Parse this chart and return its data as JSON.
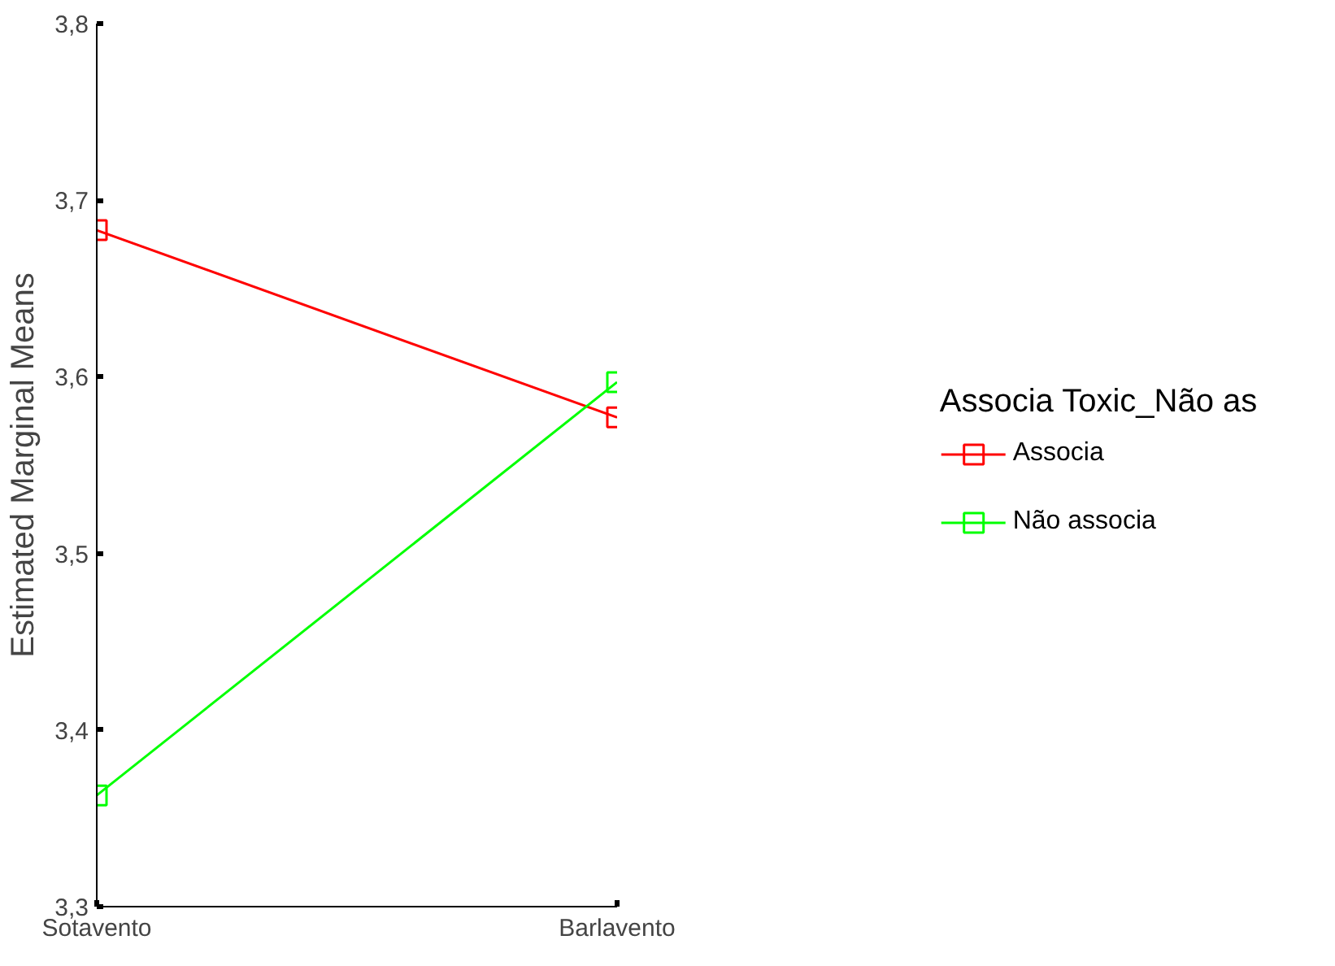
{
  "chart_data": {
    "type": "line",
    "ylabel": "Estimated Marginal Means",
    "legend_title": "Associa Toxic_Não as",
    "categories": [
      "Sotavento",
      "Barlavento"
    ],
    "series": [
      {
        "name": "Associa",
        "color": "#ff0000",
        "values": [
          3.683,
          3.577
        ]
      },
      {
        "name": "Não associa",
        "color": "#00ff00",
        "values": [
          3.363,
          3.597
        ]
      }
    ],
    "ylim": [
      3.3,
      3.8
    ],
    "yticks": [
      {
        "value": 3.3,
        "label": "3,3"
      },
      {
        "value": 3.4,
        "label": "3,4"
      },
      {
        "value": 3.5,
        "label": "3,5"
      },
      {
        "value": 3.6,
        "label": "3,6"
      },
      {
        "value": 3.7,
        "label": "3,7"
      },
      {
        "value": 3.8,
        "label": "3,8"
      }
    ],
    "marker": "square",
    "line_style": "solid",
    "grid": false,
    "legend": "right"
  }
}
